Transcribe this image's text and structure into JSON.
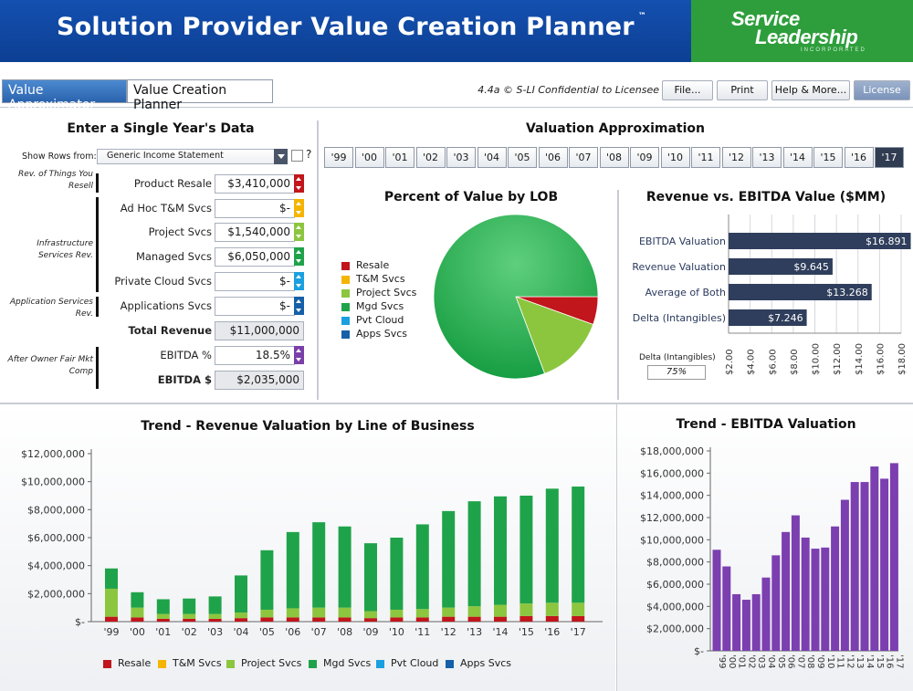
{
  "header": {
    "title": "Solution Provider Value Creation Planner",
    "trademark": "™",
    "logo_line1": "Service",
    "logo_line2": "Leadership",
    "logo_line3": "INCORPORATED"
  },
  "tabs": {
    "approximator": "Value Approximator",
    "planner": "Value Creation Planner"
  },
  "toolbar": {
    "version": "4.4a © S-LI Confidential to Licensee",
    "file": "File...",
    "print": "Print",
    "help": "Help & More...",
    "license": "License"
  },
  "entry": {
    "title": "Enter a Single Year's Data",
    "show_rows_label": "Show Rows from:",
    "show_rows_value": "Generic Income Statement",
    "help_mark": "?",
    "groups": {
      "resell": "Rev. of Things You Resell",
      "infra": "Infrastructure Services Rev.",
      "app": "Application Services Rev.",
      "owner": "After Owner Fair Mkt Comp"
    },
    "rows": {
      "product_resale": {
        "label": "Product Resale",
        "value": "$3,410,000",
        "color": "#c0161c"
      },
      "adhoc": {
        "label": "Ad Hoc T&M Svcs",
        "value": "$-",
        "color": "#f5b400"
      },
      "project": {
        "label": "Project Svcs",
        "value": "$1,540,000",
        "color": "#8cc63f"
      },
      "managed": {
        "label": "Managed Svcs",
        "value": "$6,050,000",
        "color": "#1fa34a"
      },
      "private_cloud": {
        "label": "Private Cloud Svcs",
        "value": "$-",
        "color": "#1aa0e0"
      },
      "applications": {
        "label": "Applications Svcs",
        "value": "$-",
        "color": "#1560a8"
      },
      "total_revenue": {
        "label": "Total Revenue",
        "value": "$11,000,000"
      },
      "ebitda_pct": {
        "label": "EBITDA %",
        "value": "18.5%",
        "color": "#7a3fa8"
      },
      "ebitda_dollars": {
        "label": "EBITDA $",
        "value": "$2,035,000"
      }
    }
  },
  "valuation": {
    "title": "Valuation Approximation",
    "years": [
      "'99",
      "'00",
      "'01",
      "'02",
      "'03",
      "'04",
      "'05",
      "'06",
      "'07",
      "'08",
      "'09",
      "'10",
      "'11",
      "'12",
      "'13",
      "'14",
      "'15",
      "'16",
      "'17"
    ],
    "selected_year": "'17"
  },
  "colors": {
    "resale": "#c0161c",
    "tm": "#f5b400",
    "project": "#8cc63f",
    "mgd": "#1fa34a",
    "pvt": "#1aa0e0",
    "apps": "#1560a8",
    "bar_navy": "#2f3e5c",
    "ebitda_purple": "#7b3fb0"
  },
  "lob_legend": [
    "Resale",
    "T&M Svcs",
    "Project Svcs",
    "Mgd Svcs",
    "Pvt Cloud",
    "Apps Svcs"
  ],
  "delta": {
    "label": "Delta (Intangibles)",
    "value": "75%"
  },
  "chart_data": [
    {
      "type": "pie",
      "title": "Percent of Value by LOB",
      "labels": [
        "Resale",
        "T&M Svcs",
        "Project Svcs",
        "Mgd Svcs",
        "Pvt Cloud",
        "Apps Svcs"
      ],
      "values": [
        5.5,
        0,
        13.8,
        80.7,
        0,
        0
      ]
    },
    {
      "type": "bar",
      "orientation": "horizontal",
      "title": "Revenue vs. EBITDA Value ($MM)",
      "categories": [
        "EBITDA Valuation",
        "Revenue Valuation",
        "Average of Both",
        "Delta (Intangibles)"
      ],
      "values": [
        16.891,
        9.645,
        13.268,
        7.246
      ],
      "value_labels": [
        "$16.891",
        "$9.645",
        "$13.268",
        "$7.246"
      ],
      "xlim": [
        2,
        18
      ],
      "ticks": [
        "$2.00",
        "$4.00",
        "$6.00",
        "$8.00",
        "$10.00",
        "$12.00",
        "$14.00",
        "$16.00",
        "$18.00"
      ]
    },
    {
      "type": "bar",
      "stacked": true,
      "title": "Trend - Revenue Valuation by Line of Business",
      "categories": [
        "'99",
        "'00",
        "'01",
        "'02",
        "'03",
        "'04",
        "'05",
        "'06",
        "'07",
        "'08",
        "'09",
        "'10",
        "'11",
        "'12",
        "'13",
        "'14",
        "'15",
        "'16",
        "'17"
      ],
      "ylim": [
        0,
        12000000
      ],
      "yticks": [
        "$-",
        "$2,000,000",
        "$4,000,000",
        "$6,000,000",
        "$8,000,000",
        "$10,000,000",
        "$12,000,000"
      ],
      "series": [
        {
          "name": "Resale",
          "values": [
            350000,
            300000,
            200000,
            200000,
            200000,
            250000,
            300000,
            300000,
            300000,
            300000,
            250000,
            300000,
            300000,
            350000,
            350000,
            350000,
            400000,
            400000,
            400000
          ]
        },
        {
          "name": "T&M Svcs",
          "values": [
            0,
            0,
            0,
            0,
            0,
            0,
            0,
            0,
            0,
            0,
            0,
            0,
            0,
            0,
            0,
            0,
            0,
            0,
            0
          ]
        },
        {
          "name": "Project Svcs",
          "values": [
            2000000,
            700000,
            350000,
            350000,
            350000,
            400000,
            550000,
            650000,
            700000,
            700000,
            500000,
            550000,
            600000,
            650000,
            750000,
            850000,
            900000,
            950000,
            950000
          ]
        },
        {
          "name": "Mgd Svcs",
          "values": [
            1450000,
            1100000,
            1050000,
            1100000,
            1250000,
            2650000,
            4250000,
            5450000,
            6100000,
            5800000,
            4850000,
            5150000,
            6050000,
            6900000,
            7500000,
            7750000,
            7700000,
            8150000,
            8300000
          ]
        },
        {
          "name": "Pvt Cloud",
          "values": [
            0,
            0,
            0,
            0,
            0,
            0,
            0,
            0,
            0,
            0,
            0,
            0,
            0,
            0,
            0,
            0,
            0,
            0,
            0
          ]
        },
        {
          "name": "Apps Svcs",
          "values": [
            0,
            0,
            0,
            0,
            0,
            0,
            0,
            0,
            0,
            0,
            0,
            0,
            0,
            0,
            0,
            0,
            0,
            0,
            0
          ]
        }
      ]
    },
    {
      "type": "bar",
      "title": "Trend - EBITDA Valuation",
      "categories": [
        "'99",
        "'00",
        "'01",
        "'02",
        "'03",
        "'04",
        "'05",
        "'06",
        "'07",
        "'08",
        "'09",
        "'10",
        "'11",
        "'12",
        "'13",
        "'14",
        "'15",
        "'16",
        "'17"
      ],
      "ylim": [
        0,
        18000000
      ],
      "yticks": [
        "$-",
        "$2,000,000",
        "$4,000,000",
        "$6,000,000",
        "$8,000,000",
        "$10,000,000",
        "$12,000,000",
        "$14,000,000",
        "$16,000,000",
        "$18,000,000"
      ],
      "values": [
        9100000,
        7600000,
        5100000,
        4600000,
        5100000,
        6600000,
        8600000,
        10700000,
        12200000,
        10200000,
        9200000,
        9300000,
        11200000,
        13600000,
        15200000,
        15200000,
        16600000,
        15500000,
        16900000
      ]
    }
  ]
}
